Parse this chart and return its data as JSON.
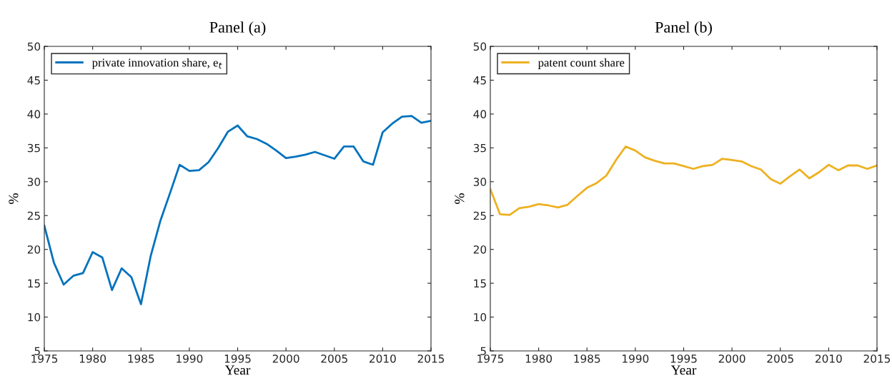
{
  "chart_data": [
    {
      "type": "line",
      "title": "Panel (a)",
      "xlabel": "Year",
      "ylabel": "%",
      "legend": "top left",
      "grid": false,
      "x": [
        1975,
        1976,
        1977,
        1978,
        1979,
        1980,
        1981,
        1982,
        1983,
        1984,
        1985,
        1986,
        1987,
        1988,
        1989,
        1990,
        1991,
        1992,
        1993,
        1994,
        1995,
        1996,
        1997,
        1998,
        1999,
        2000,
        2001,
        2002,
        2003,
        2004,
        2005,
        2006,
        2007,
        2008,
        2009,
        2010,
        2011,
        2012,
        2013,
        2014,
        2015
      ],
      "series": [
        {
          "name": "private innovation share, e$_{t}$",
          "color": "#0072bd",
          "values": [
            23.5,
            18.0,
            14.8,
            16.1,
            16.5,
            19.6,
            18.8,
            14.0,
            17.2,
            15.9,
            11.9,
            19.0,
            24.2,
            28.3,
            32.5,
            31.6,
            31.7,
            32.9,
            35.0,
            37.4,
            38.3,
            36.7,
            36.3,
            35.6,
            34.6,
            33.5,
            33.7,
            34.0,
            34.4,
            33.9,
            33.4,
            35.2,
            35.2,
            33.0,
            32.5,
            37.3,
            38.6,
            39.6,
            39.7,
            38.7,
            39.0
          ]
        }
      ],
      "xlim": [
        1975,
        2015
      ],
      "xticks": [
        1975,
        1980,
        1985,
        1990,
        1995,
        2000,
        2005,
        2010,
        2015
      ],
      "ylim": [
        5,
        50
      ],
      "yticks": [
        5,
        10,
        15,
        20,
        25,
        30,
        35,
        40,
        45,
        50
      ]
    },
    {
      "type": "line",
      "title": "Panel (b)",
      "xlabel": "Year",
      "ylabel": "%",
      "legend": "top left",
      "grid": false,
      "x": [
        1975,
        1976,
        1977,
        1978,
        1979,
        1980,
        1981,
        1982,
        1983,
        1984,
        1985,
        1986,
        1987,
        1988,
        1989,
        1990,
        1991,
        1992,
        1993,
        1994,
        1995,
        1996,
        1997,
        1998,
        1999,
        2000,
        2001,
        2002,
        2003,
        2004,
        2005,
        2006,
        2007,
        2008,
        2009,
        2010,
        2011,
        2012,
        2013,
        2014,
        2015
      ],
      "series": [
        {
          "name": "patent count share",
          "color": "#edb120",
          "values": [
            28.9,
            25.2,
            25.1,
            26.1,
            26.3,
            26.7,
            26.5,
            26.2,
            26.6,
            27.9,
            29.1,
            29.8,
            30.9,
            33.2,
            35.2,
            34.6,
            33.6,
            33.1,
            32.7,
            32.7,
            32.3,
            31.9,
            32.3,
            32.5,
            33.4,
            33.2,
            33.0,
            32.3,
            31.8,
            30.4,
            29.7,
            30.8,
            31.8,
            30.5,
            31.4,
            32.5,
            31.7,
            32.4,
            32.4,
            31.9,
            32.4
          ]
        }
      ],
      "xlim": [
        1975,
        2015
      ],
      "xticks": [
        1975,
        1980,
        1985,
        1990,
        1995,
        2000,
        2005,
        2010,
        2015
      ],
      "ylim": [
        5,
        50
      ],
      "yticks": [
        5,
        10,
        15,
        20,
        25,
        30,
        35,
        40,
        45,
        50
      ]
    }
  ]
}
